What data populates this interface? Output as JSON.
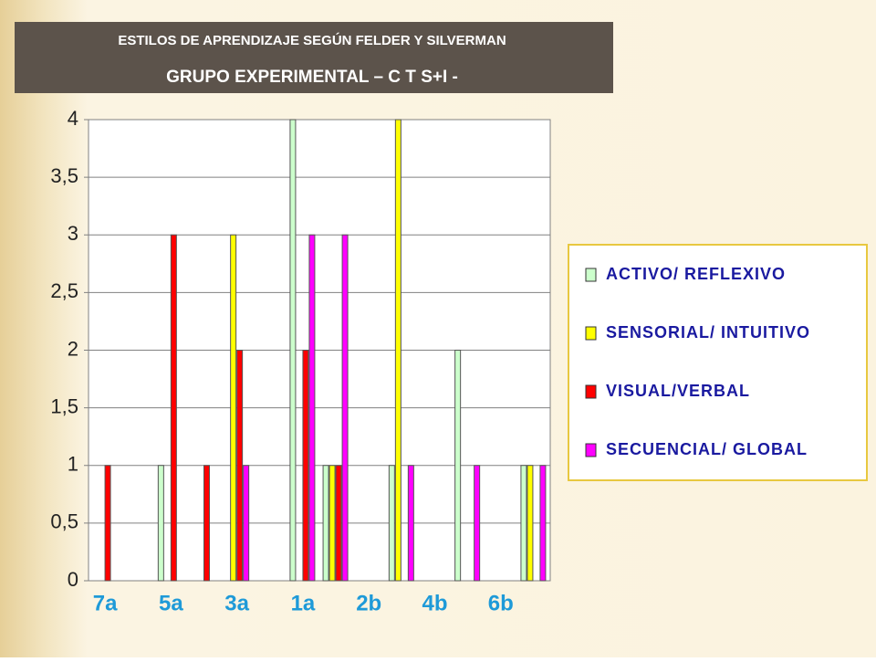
{
  "chart_data": {
    "type": "bar",
    "title": "ESTILOS DE APRENDIZAJE SEGÚN FELDER Y SILVERMAN",
    "subtitle": "GRUPO EXPERIMENTAL – C T S+I -",
    "categories": [
      "7a",
      null,
      "5a",
      null,
      "3a",
      null,
      "1a",
      null,
      "2b",
      null,
      "4b",
      null,
      "6b",
      null
    ],
    "series": [
      {
        "name": "ACTIVO/ REFLEXIVO",
        "color": "#ccffcc",
        "values": [
          0,
          0,
          1,
          0,
          0,
          0,
          4,
          1,
          0,
          1,
          0,
          2,
          0,
          1
        ]
      },
      {
        "name": "SENSORIAL/ INTUITIVO",
        "color": "#ffff00",
        "values": [
          0,
          0,
          0,
          0,
          3,
          0,
          0,
          1,
          0,
          4,
          0,
          0,
          0,
          1
        ]
      },
      {
        "name": "VISUAL/VERBAL",
        "color": "#ff0000",
        "values": [
          1,
          0,
          3,
          1,
          2,
          0,
          2,
          1,
          0,
          0,
          0,
          0,
          0,
          0
        ]
      },
      {
        "name": "SECUENCIAL/ GLOBAL",
        "color": "#ff00ff",
        "values": [
          0,
          0,
          0,
          0,
          1,
          0,
          3,
          3,
          0,
          1,
          0,
          1,
          0,
          1
        ]
      }
    ],
    "ylim": [
      0,
      4
    ],
    "yticks": [
      0,
      {
        "value": 0.5,
        "label": "0,5"
      },
      1,
      {
        "value": 1.5,
        "label": "1,5"
      },
      2,
      {
        "value": 2.5,
        "label": "2,5"
      },
      3,
      {
        "value": 3.5,
        "label": "3,5"
      },
      4
    ],
    "grid": true,
    "legend": "right"
  }
}
